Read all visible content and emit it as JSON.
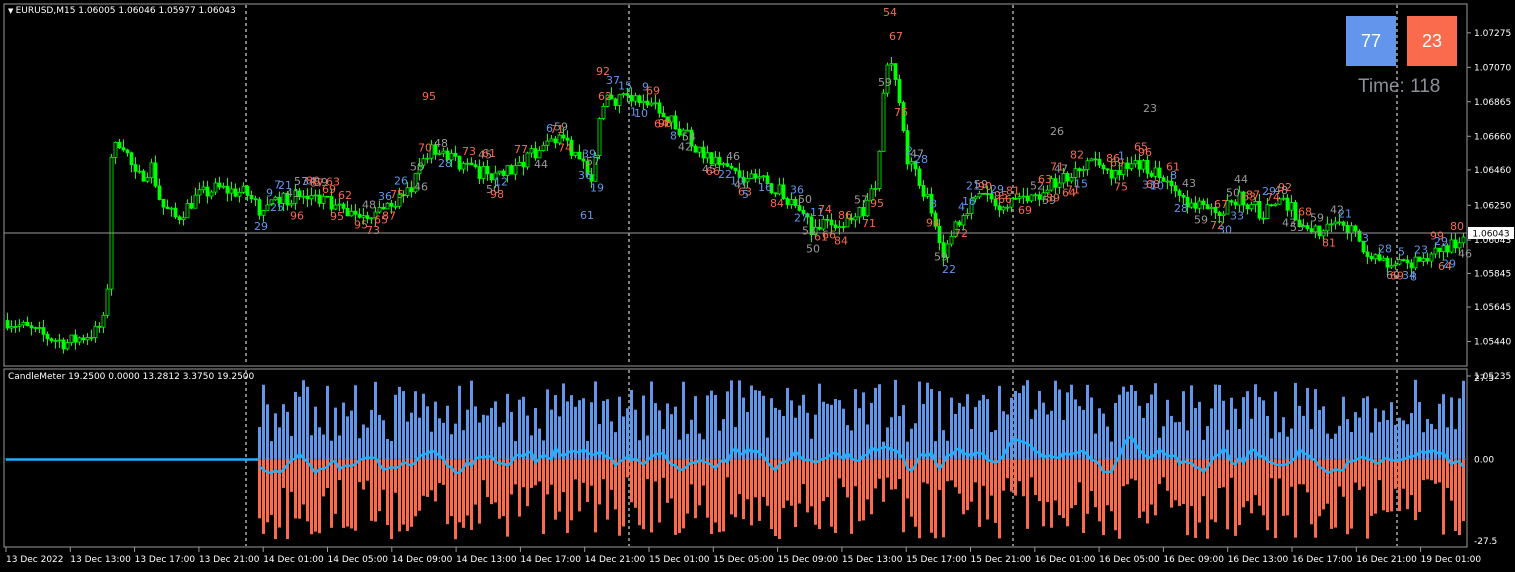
{
  "chart_title": "EURUSD,M15  1.06005 1.06046 1.05977 1.06043",
  "indicator_title": "CandleMeter 19.2500 0.0000 13.2812 3.3750 19.2500",
  "buy_box": {
    "value": "77",
    "color": "#6495ed"
  },
  "sell_box": {
    "value": "23",
    "color": "#fa6a4c"
  },
  "timer_text": "Time: 118",
  "price_ticks": [
    "1.07275",
    "1.07070",
    "1.06865",
    "1.06660",
    "1.06460",
    "1.06250",
    "1.06043",
    "1.05845",
    "1.05645",
    "1.05440",
    "1.05235"
  ],
  "current_price": "1.06043",
  "indicator_ticks": [
    "27.5",
    "0.00",
    "-27.5"
  ],
  "time_ticks": [
    "13 Dec 2022",
    "13 Dec 13:00",
    "13 Dec 17:00",
    "13 Dec 21:00",
    "14 Dec 01:00",
    "14 Dec 05:00",
    "14 Dec 09:00",
    "14 Dec 13:00",
    "14 Dec 17:00",
    "14 Dec 21:00",
    "15 Dec 01:00",
    "15 Dec 05:00",
    "15 Dec 09:00",
    "15 Dec 13:00",
    "15 Dec 17:00",
    "15 Dec 21:00",
    "16 Dec 01:00",
    "16 Dec 05:00",
    "16 Dec 09:00",
    "16 Dec 13:00",
    "16 Dec 17:00",
    "16 Dec 21:00",
    "19 Dec 01:00"
  ],
  "colors": {
    "bull": "#00ff00",
    "bear": "#6495ed",
    "up_label": "#fa6a4c",
    "down_label": "#6495ed",
    "neutral_label": "#9a9a9a",
    "line": "#1fb0ff"
  },
  "chart_data": {
    "type": "candlestick",
    "instrument": "EURUSD,M15",
    "price_range": [
      1.05235,
      1.07375
    ],
    "close_path": [
      [
        0,
        1.0558
      ],
      [
        40,
        1.0548
      ],
      [
        65,
        1.0543
      ],
      [
        95,
        1.055
      ],
      [
        105,
        1.0558
      ],
      [
        110,
        1.0655
      ],
      [
        120,
        1.0665
      ],
      [
        135,
        1.064
      ],
      [
        150,
        1.0648
      ],
      [
        160,
        1.0625
      ],
      [
        175,
        1.0617
      ],
      [
        195,
        1.063
      ],
      [
        215,
        1.0635
      ],
      [
        245,
        1.0632
      ],
      [
        260,
        1.0622
      ],
      [
        290,
        1.063
      ],
      [
        320,
        1.0628
      ],
      [
        350,
        1.062
      ],
      [
        375,
        1.0622
      ],
      [
        405,
        1.063
      ],
      [
        430,
        1.066
      ],
      [
        460,
        1.065
      ],
      [
        490,
        1.0642
      ],
      [
        520,
        1.065
      ],
      [
        555,
        1.0665
      ],
      [
        575,
        1.0655
      ],
      [
        590,
        1.064
      ],
      [
        600,
        1.0685
      ],
      [
        620,
        1.069
      ],
      [
        650,
        1.0685
      ],
      [
        680,
        1.067
      ],
      [
        700,
        1.0655
      ],
      [
        730,
        1.0645
      ],
      [
        760,
        1.064
      ],
      [
        790,
        1.0628
      ],
      [
        810,
        1.0612
      ],
      [
        840,
        1.0615
      ],
      [
        860,
        1.062
      ],
      [
        875,
        1.0638
      ],
      [
        885,
        1.071
      ],
      [
        895,
        1.07
      ],
      [
        905,
        1.0655
      ],
      [
        925,
        1.063
      ],
      [
        940,
        1.0595
      ],
      [
        960,
        1.062
      ],
      [
        980,
        1.063
      ],
      [
        1000,
        1.0625
      ],
      [
        1030,
        1.063
      ],
      [
        1060,
        1.064
      ],
      [
        1085,
        1.065
      ],
      [
        1110,
        1.0645
      ],
      [
        1140,
        1.065
      ],
      [
        1160,
        1.0642
      ],
      [
        1180,
        1.063
      ],
      [
        1210,
        1.062
      ],
      [
        1240,
        1.063
      ],
      [
        1260,
        1.062
      ],
      [
        1280,
        1.063
      ],
      [
        1300,
        1.0615
      ],
      [
        1320,
        1.061
      ],
      [
        1345,
        1.0612
      ],
      [
        1365,
        1.0598
      ],
      [
        1385,
        1.059
      ],
      [
        1410,
        1.059
      ],
      [
        1430,
        1.0595
      ],
      [
        1460,
        1.0604
      ]
    ],
    "indicator_range": [
      -27.5,
      27.5
    ],
    "indicator_series": [
      "buy (positive histogram)",
      "sell (negative histogram)",
      "signal line"
    ]
  }
}
